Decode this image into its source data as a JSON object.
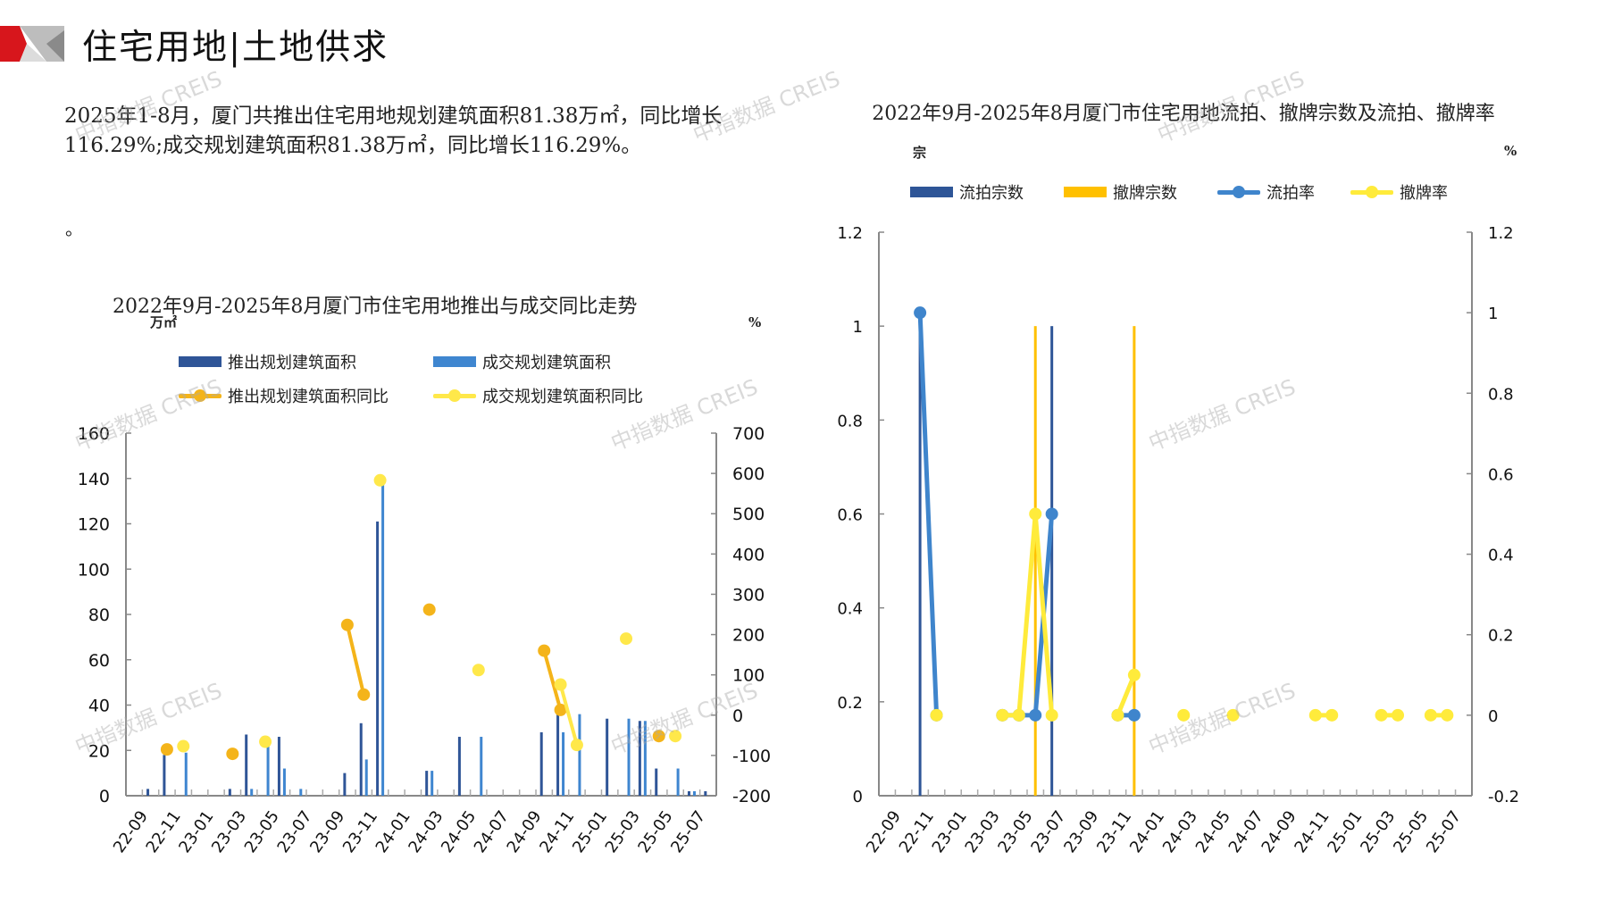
{
  "header": {
    "title": "住宅用地|土地供求"
  },
  "summary": "2025年1-8月，厦门共推出住宅用地规划建筑面积81.38万㎡，同比增长116.29%;成交规划建筑面积81.38万㎡，同比增长116.29%。",
  "stray_mark": "。",
  "watermark": "中指数据 CREIS",
  "colors": {
    "push": "#2f5597",
    "deal": "#3f86d0",
    "push_yoy": "#f4b41a",
    "deal_yoy": "#ffe84a",
    "unsold": "#2e5597",
    "withdrawn": "#ffc000",
    "unsold_rate": "#3f85cc",
    "withdrawn_rate": "#ffeb3b",
    "accent_red": "#d7161c"
  },
  "chart_data": [
    {
      "type": "bar",
      "title": "2022年9月-2025年8月厦门市住宅用地推出与成交同比走势",
      "ylabel": "万㎡",
      "y2label": "%",
      "ylim": [
        0,
        160
      ],
      "yticks": [
        "0",
        "20",
        "40",
        "60",
        "80",
        "100",
        "120",
        "140",
        "160"
      ],
      "y2lim": [
        -200,
        700
      ],
      "y2ticks": [
        "-200",
        "-100",
        "0",
        "100",
        "200",
        "300",
        "400",
        "500",
        "600",
        "700"
      ],
      "legend": [
        "推出规划建筑面积",
        "成交规划建筑面积",
        "推出规划建筑面积同比",
        "成交规划建筑面积同比"
      ],
      "legend_position": "top",
      "categories": [
        "22-09",
        "22-10",
        "22-11",
        "22-12",
        "23-01",
        "23-02",
        "23-03",
        "23-04",
        "23-05",
        "23-06",
        "23-07",
        "23-08",
        "23-09",
        "23-10",
        "23-11",
        "23-12",
        "24-01",
        "24-02",
        "24-03",
        "24-04",
        "24-05",
        "24-06",
        "24-07",
        "24-08",
        "24-09",
        "24-10",
        "24-11",
        "24-12",
        "25-01",
        "25-02",
        "25-03",
        "25-04",
        "25-05",
        "25-06",
        "25-07",
        "25-08"
      ],
      "xtick_labels": [
        "22-09",
        "22-11",
        "23-01",
        "23-03",
        "23-05",
        "23-07",
        "23-09",
        "23-11",
        "24-01",
        "24-03",
        "24-05",
        "24-07",
        "24-09",
        "24-11",
        "25-01",
        "25-03",
        "25-05",
        "25-07"
      ],
      "series": [
        {
          "name": "推出规划建筑面积",
          "kind": "bar",
          "axis": "left",
          "values": [
            0,
            3,
            18,
            0,
            0,
            0,
            3,
            27,
            0,
            26,
            0,
            0,
            0,
            10,
            32,
            121,
            0,
            0,
            11,
            0,
            26,
            0,
            0,
            0,
            0,
            28,
            37,
            0,
            0,
            34,
            0,
            33,
            12,
            0,
            2,
            2
          ]
        },
        {
          "name": "成交规划建筑面积",
          "kind": "bar",
          "axis": "left",
          "values": [
            0,
            0,
            0,
            19,
            0,
            0,
            0,
            3,
            26,
            12,
            3,
            0,
            0,
            0,
            16,
            138,
            0,
            0,
            11,
            0,
            0,
            26,
            0,
            0,
            0,
            0,
            28,
            36,
            0,
            0,
            34,
            33,
            0,
            12,
            2,
            0
          ]
        },
        {
          "name": "推出规划建筑面积同比",
          "kind": "line",
          "axis": "right",
          "values": [
            null,
            null,
            -85,
            null,
            null,
            null,
            -96,
            null,
            null,
            null,
            null,
            null,
            null,
            224,
            51,
            null,
            null,
            null,
            262,
            null,
            null,
            null,
            null,
            null,
            null,
            160,
            13,
            null,
            null,
            null,
            null,
            null,
            -52,
            null,
            null,
            null
          ]
        },
        {
          "name": "成交规划建筑面积同比",
          "kind": "line",
          "axis": "right",
          "values": [
            null,
            null,
            null,
            -77,
            null,
            null,
            null,
            null,
            -66,
            null,
            null,
            null,
            null,
            null,
            null,
            583,
            null,
            null,
            null,
            null,
            null,
            112,
            null,
            null,
            null,
            null,
            76,
            -74,
            null,
            null,
            190,
            null,
            null,
            -52,
            null,
            null
          ]
        }
      ]
    },
    {
      "type": "bar",
      "title": "2022年9月-2025年8月厦门市住宅用地流拍、撤牌宗数及流拍、撤牌率",
      "ylabel": "宗",
      "y2label": "%",
      "ylim": [
        0,
        1.2
      ],
      "yticks": [
        "0",
        "0.2",
        "0.4",
        "0.6",
        "0.8",
        "1",
        "1.2"
      ],
      "y2lim": [
        -0.2,
        1.2
      ],
      "y2ticks": [
        "-0.2",
        "0",
        "0.2",
        "0.4",
        "0.6",
        "0.8",
        "1",
        "1.2"
      ],
      "legend": [
        "流拍宗数",
        "撤牌宗数",
        "流拍率",
        "撤牌率"
      ],
      "legend_position": "top",
      "categories": [
        "22-09",
        "22-10",
        "22-11",
        "22-12",
        "23-01",
        "23-02",
        "23-03",
        "23-04",
        "23-05",
        "23-06",
        "23-07",
        "23-08",
        "23-09",
        "23-10",
        "23-11",
        "23-12",
        "24-01",
        "24-02",
        "24-03",
        "24-04",
        "24-05",
        "24-06",
        "24-07",
        "24-08",
        "24-09",
        "24-10",
        "24-11",
        "24-12",
        "25-01",
        "25-02",
        "25-03",
        "25-04",
        "25-05",
        "25-06",
        "25-07",
        "25-08"
      ],
      "xtick_labels": [
        "22-09",
        "22-11",
        "23-01",
        "23-03",
        "23-05",
        "23-07",
        "23-09",
        "23-11",
        "24-01",
        "24-03",
        "24-05",
        "24-07",
        "24-09",
        "24-11",
        "25-01",
        "25-03",
        "25-05",
        "25-07"
      ],
      "series": [
        {
          "name": "流拍宗数",
          "kind": "bar",
          "axis": "left",
          "values": [
            0,
            0,
            1,
            0,
            0,
            0,
            0,
            0,
            0,
            0,
            1,
            0,
            0,
            0,
            0,
            0,
            0,
            0,
            0,
            0,
            0,
            0,
            0,
            0,
            0,
            0,
            0,
            0,
            0,
            0,
            0,
            0,
            0,
            0,
            0,
            0
          ]
        },
        {
          "name": "撤牌宗数",
          "kind": "bar",
          "axis": "left",
          "values": [
            0,
            0,
            0,
            0,
            0,
            0,
            0,
            0,
            0,
            1,
            0,
            0,
            0,
            0,
            0,
            1,
            0,
            0,
            0,
            0,
            0,
            0,
            0,
            0,
            0,
            0,
            0,
            0,
            0,
            0,
            0,
            0,
            0,
            0,
            0,
            0
          ]
        },
        {
          "name": "流拍率",
          "kind": "line",
          "axis": "right",
          "values": [
            null,
            null,
            1,
            0,
            null,
            null,
            null,
            0,
            0,
            0,
            0.5,
            null,
            null,
            null,
            0,
            0,
            null,
            null,
            null,
            null,
            null,
            null,
            null,
            null,
            null,
            null,
            null,
            null,
            null,
            null,
            null,
            null,
            null,
            null,
            null,
            null
          ]
        },
        {
          "name": "撤牌率",
          "kind": "line",
          "axis": "right",
          "values": [
            null,
            null,
            null,
            0,
            null,
            null,
            null,
            0,
            0,
            0.5,
            0,
            null,
            null,
            null,
            0,
            0.1,
            null,
            null,
            0,
            null,
            null,
            0,
            null,
            null,
            null,
            null,
            0,
            0,
            null,
            null,
            0,
            0,
            null,
            0,
            0,
            null
          ]
        }
      ]
    }
  ]
}
